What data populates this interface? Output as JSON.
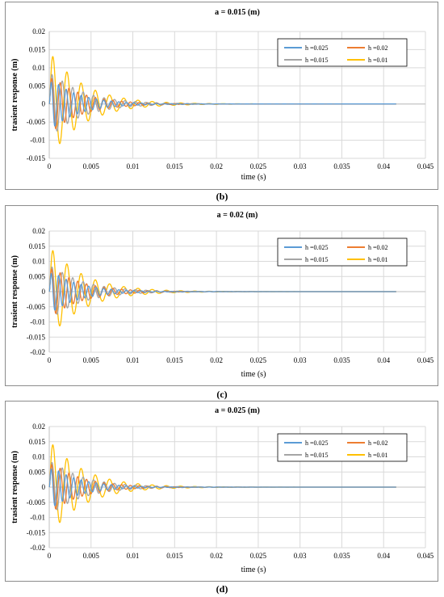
{
  "captions": [
    "(b)",
    "(c)",
    "(d)"
  ],
  "colors": {
    "h=0.025": "#5b9bd5",
    "h=0.02": "#ed7d31",
    "h=0.015": "#a5a5a5",
    "h=0.01": "#ffc000"
  },
  "chart_data": [
    {
      "type": "line",
      "title": "a = 0.015 (m)",
      "xlabel": "time (s)",
      "ylabel": "trasient response (m)",
      "xlim": [
        0,
        0.045
      ],
      "ylim": [
        -0.015,
        0.02
      ],
      "xticks": [
        "0",
        "0.005",
        "0.01",
        "0.015",
        "0.02",
        "0.025",
        "0.03",
        "0.035",
        "0.04",
        "0.045"
      ],
      "yticks": [
        "0.02",
        "0.015",
        "0.01",
        "0.005",
        "0",
        "-0.005",
        "-0.01",
        "-0.015"
      ],
      "grid": true,
      "legend": "top-right",
      "series": [
        {
          "name": "h =0.025",
          "amplitude": 0.0075,
          "decay": 300,
          "period": 0.0009,
          "x_end": 0.0415
        },
        {
          "name": "h =0.02",
          "amplitude": 0.0085,
          "decay": 280,
          "period": 0.00105,
          "x_end": 0.0415
        },
        {
          "name": "h =0.015",
          "amplitude": 0.0095,
          "decay": 260,
          "period": 0.00125,
          "x_end": 0.0415
        },
        {
          "name": "h =0.01",
          "amplitude": 0.015,
          "decay": 250,
          "period": 0.0017,
          "x_end": 0.0415
        }
      ]
    },
    {
      "type": "line",
      "title": "a = 0.02 (m)",
      "xlabel": "time (s)",
      "ylabel": "trasient response (m)",
      "xlim": [
        0,
        0.045
      ],
      "ylim": [
        -0.02,
        0.02
      ],
      "xticks": [
        "0",
        "0.005",
        "0.01",
        "0.015",
        "0.02",
        "0.025",
        "0.03",
        "0.035",
        "0.04",
        "0.045"
      ],
      "yticks": [
        "0.02",
        "0.015",
        "0.01",
        "0.005",
        "0",
        "-0.005",
        "-0.01",
        "-0.015",
        "-0.02"
      ],
      "grid": true,
      "legend": "top-right",
      "series": [
        {
          "name": "h =0.025",
          "amplitude": 0.0075,
          "decay": 300,
          "period": 0.0009,
          "x_end": 0.0415
        },
        {
          "name": "h =0.02",
          "amplitude": 0.009,
          "decay": 280,
          "period": 0.00105,
          "x_end": 0.0415
        },
        {
          "name": "h =0.015",
          "amplitude": 0.0095,
          "decay": 260,
          "period": 0.00125,
          "x_end": 0.0415
        },
        {
          "name": "h =0.01",
          "amplitude": 0.0155,
          "decay": 250,
          "period": 0.0017,
          "x_end": 0.0415
        }
      ]
    },
    {
      "type": "line",
      "title": "a = 0.025 (m)",
      "xlabel": "time (s)",
      "ylabel": "trasient response (m)",
      "xlim": [
        0,
        0.045
      ],
      "ylim": [
        -0.02,
        0.02
      ],
      "xticks": [
        "0",
        "0.005",
        "0.01",
        "0.015",
        "0.02",
        "0.025",
        "0.03",
        "0.035",
        "0.04",
        "0.045"
      ],
      "yticks": [
        "0.02",
        "0.015",
        "0.01",
        "0.005",
        "0",
        "-0.005",
        "-0.01",
        "-0.015",
        "-0.02"
      ],
      "grid": true,
      "legend": "top-right",
      "series": [
        {
          "name": "h =0.025",
          "amplitude": 0.0075,
          "decay": 300,
          "period": 0.0009,
          "x_end": 0.0415
        },
        {
          "name": "h =0.02",
          "amplitude": 0.009,
          "decay": 280,
          "period": 0.00105,
          "x_end": 0.0415
        },
        {
          "name": "h =0.015",
          "amplitude": 0.0095,
          "decay": 260,
          "period": 0.00125,
          "x_end": 0.0415
        },
        {
          "name": "h =0.01",
          "amplitude": 0.016,
          "decay": 250,
          "period": 0.0017,
          "x_end": 0.0415
        }
      ]
    }
  ]
}
